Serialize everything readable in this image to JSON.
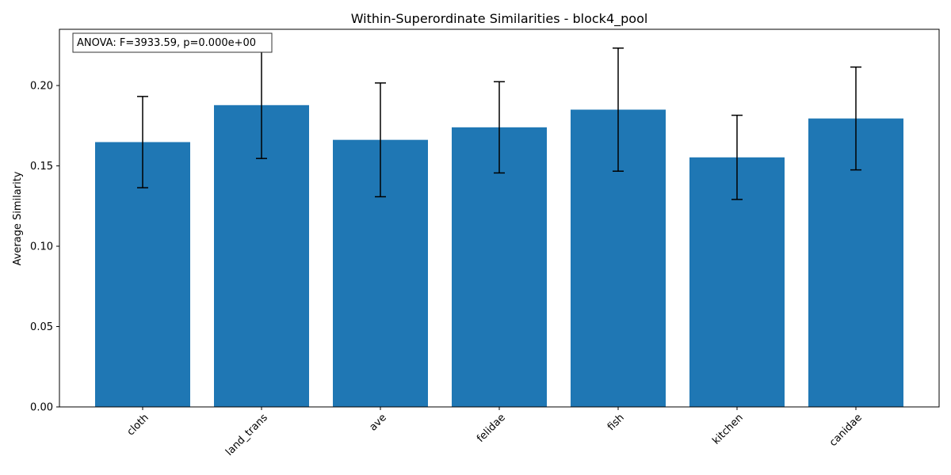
{
  "chart_data": {
    "type": "bar",
    "title": "Within-Superordinate Similarities - block4_pool",
    "xlabel": "",
    "ylabel": "Average Similarity",
    "categories": [
      "cloth",
      "land_trans",
      "ave",
      "felidae",
      "fish",
      "kitchen",
      "canidae"
    ],
    "values": [
      0.1648,
      0.1878,
      0.1662,
      0.174,
      0.185,
      0.1553,
      0.1795
    ],
    "errors": [
      0.0284,
      0.0332,
      0.0354,
      0.0284,
      0.0383,
      0.0262,
      0.032
    ],
    "ylim": [
      0,
      0.235
    ],
    "yticks": [
      "0.00",
      "0.05",
      "0.10",
      "0.15",
      "0.20"
    ],
    "annotation": "ANOVA: F=3933.59, p=0.000e+00",
    "grid": false,
    "bar_color": "#1f77b4",
    "error_color": "#000000"
  }
}
